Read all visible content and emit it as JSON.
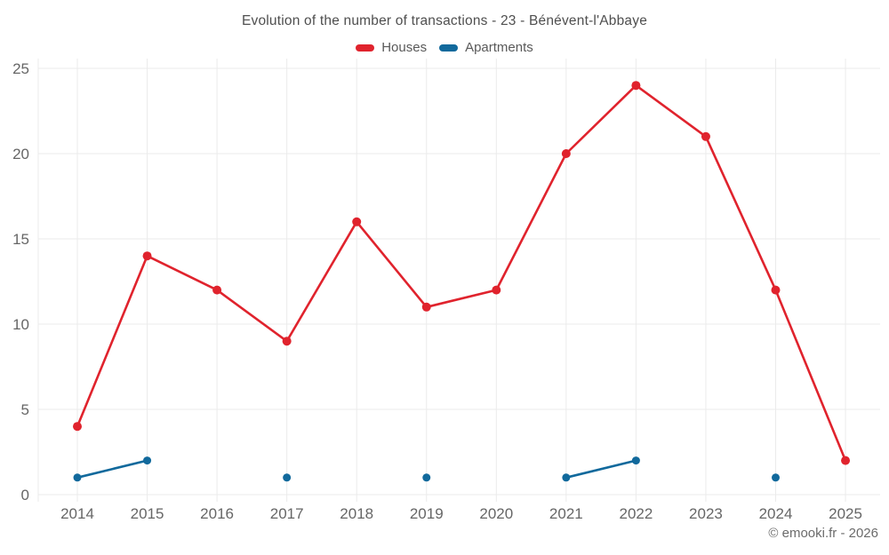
{
  "chart_data": {
    "type": "line",
    "title": "Evolution of the number of transactions - 23 - Bénévent-l'Abbaye",
    "categories": [
      "2014",
      "2015",
      "2016",
      "2017",
      "2018",
      "2019",
      "2020",
      "2021",
      "2022",
      "2023",
      "2024",
      "2025"
    ],
    "series": [
      {
        "name": "Houses",
        "color": "#e0232d",
        "values": [
          4,
          14,
          12,
          9,
          16,
          11,
          12,
          20,
          24,
          21,
          12,
          2
        ]
      },
      {
        "name": "Apartments",
        "color": "#11699c",
        "values": [
          1,
          2,
          null,
          1,
          null,
          1,
          null,
          1,
          2,
          null,
          1,
          null
        ]
      }
    ],
    "xlabel": "",
    "ylabel": "",
    "ylim": [
      0,
      25
    ],
    "yticks": [
      0,
      5,
      10,
      15,
      20,
      25
    ],
    "grid": true,
    "legend_position": "top"
  },
  "footer": {
    "copyright": "© emooki.fr - 2026"
  },
  "theme": {
    "grid_color": "#ebebeb",
    "tick_text_color": "#666666",
    "title_color": "#4f4f4f",
    "legend_text_color": "#595959",
    "footer_color": "#6b6b6b"
  }
}
